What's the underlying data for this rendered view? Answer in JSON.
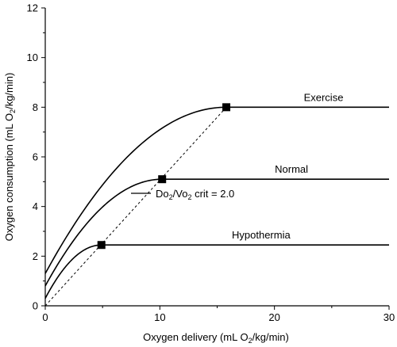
{
  "chart_data": {
    "type": "line",
    "title": "",
    "xlabel": {
      "pre": "Oxygen delivery (mL O",
      "sub": "2",
      "post": "/kg/min)"
    },
    "ylabel": {
      "pre": "Oxygen consumption (mL O",
      "sub": "2",
      "post": "/kg/min)"
    },
    "xlim": [
      0,
      30
    ],
    "ylim": [
      0,
      12
    ],
    "xticks": [
      "0",
      "10",
      "20",
      "30"
    ],
    "yticks": [
      "0",
      "2",
      "4",
      "6",
      "8",
      "10",
      "12"
    ],
    "grid": false,
    "series": [
      {
        "name": "Exercise",
        "intercept": 1.3,
        "critical_point": [
          15.8,
          8.0
        ],
        "plateau": 8.0
      },
      {
        "name": "Normal",
        "intercept": 0.8,
        "critical_point": [
          10.2,
          5.1
        ],
        "plateau": 5.1
      },
      {
        "name": "Hypothermia",
        "intercept": 0.3,
        "critical_point": [
          4.9,
          2.45
        ],
        "plateau": 2.45
      }
    ],
    "critical_line": {
      "from": [
        0,
        0
      ],
      "to": [
        15.8,
        8.0
      ],
      "style": "dashed"
    },
    "annotation": {
      "p1": "Do",
      "s1": "2",
      "p2": "/Vo",
      "s2": "2",
      "p3": " crit = 2.0"
    }
  }
}
